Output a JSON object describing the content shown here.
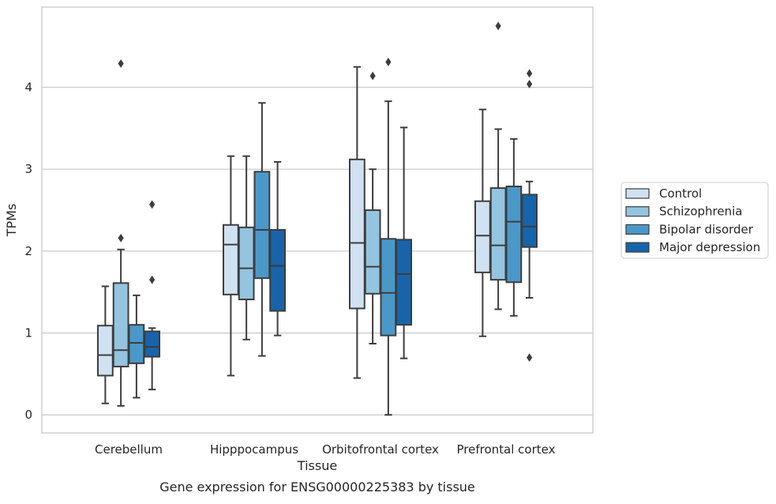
{
  "chart_data": {
    "type": "boxplot",
    "title": "Gene expression for ENSG00000225383 by tissue",
    "xlabel": "Tissue",
    "ylabel": "TPMs",
    "ylim": [
      -0.22,
      4.98
    ],
    "yticks": [
      "0",
      "1",
      "2",
      "3",
      "4"
    ],
    "grid": "horizontal",
    "legend_position": "right",
    "categories": [
      "Cerebellum",
      "Hipppocampus",
      "Orbitofrontal cortex",
      "Prefrontal cortex"
    ],
    "series": [
      {
        "name": "Control",
        "color": "#d0e1f2",
        "boxes": [
          {
            "whislo": 0.14,
            "q1": 0.48,
            "med": 0.73,
            "q3": 1.09,
            "whishi": 1.57,
            "fliers": []
          },
          {
            "whislo": 0.48,
            "q1": 1.47,
            "med": 2.08,
            "q3": 2.32,
            "whishi": 3.16,
            "fliers": []
          },
          {
            "whislo": 0.45,
            "q1": 1.3,
            "med": 2.1,
            "q3": 3.12,
            "whishi": 4.25,
            "fliers": []
          },
          {
            "whislo": 0.96,
            "q1": 1.74,
            "med": 2.19,
            "q3": 2.61,
            "whishi": 3.73,
            "fliers": []
          }
        ]
      },
      {
        "name": "Schizophrenia",
        "color": "#94c4df",
        "boxes": [
          {
            "whislo": 0.11,
            "q1": 0.59,
            "med": 0.79,
            "q3": 1.61,
            "whishi": 2.02,
            "fliers": [
              2.16,
              4.29
            ]
          },
          {
            "whislo": 0.92,
            "q1": 1.41,
            "med": 1.79,
            "q3": 2.29,
            "whishi": 3.16,
            "fliers": []
          },
          {
            "whislo": 0.87,
            "q1": 1.48,
            "med": 1.81,
            "q3": 2.5,
            "whishi": 3.0,
            "fliers": [
              4.14
            ]
          },
          {
            "whislo": 1.29,
            "q1": 1.65,
            "med": 2.07,
            "q3": 2.77,
            "whishi": 3.49,
            "fliers": [
              4.75
            ]
          }
        ]
      },
      {
        "name": "Bipolar disorder",
        "color": "#4a98c9",
        "boxes": [
          {
            "whislo": 0.21,
            "q1": 0.63,
            "med": 0.88,
            "q3": 1.1,
            "whishi": 1.46,
            "fliers": []
          },
          {
            "whislo": 0.72,
            "q1": 1.67,
            "med": 2.26,
            "q3": 2.97,
            "whishi": 3.81,
            "fliers": []
          },
          {
            "whislo": 0.0,
            "q1": 0.97,
            "med": 1.49,
            "q3": 2.15,
            "whishi": 3.83,
            "fliers": [
              4.31
            ]
          },
          {
            "whislo": 1.21,
            "q1": 1.62,
            "med": 2.36,
            "q3": 2.79,
            "whishi": 3.37,
            "fliers": []
          }
        ]
      },
      {
        "name": "Major depression",
        "color": "#1764ab",
        "boxes": [
          {
            "whislo": 0.31,
            "q1": 0.71,
            "med": 0.83,
            "q3": 1.02,
            "whishi": 1.06,
            "fliers": [
              1.65,
              2.57
            ]
          },
          {
            "whislo": 0.97,
            "q1": 1.27,
            "med": 1.82,
            "q3": 2.26,
            "whishi": 3.09,
            "fliers": []
          },
          {
            "whislo": 0.69,
            "q1": 1.1,
            "med": 1.72,
            "q3": 2.14,
            "whishi": 3.51,
            "fliers": []
          },
          {
            "whislo": 1.43,
            "q1": 2.05,
            "med": 2.3,
            "q3": 2.69,
            "whishi": 2.85,
            "fliers": [
              0.7,
              4.04,
              4.17
            ]
          }
        ]
      }
    ]
  }
}
